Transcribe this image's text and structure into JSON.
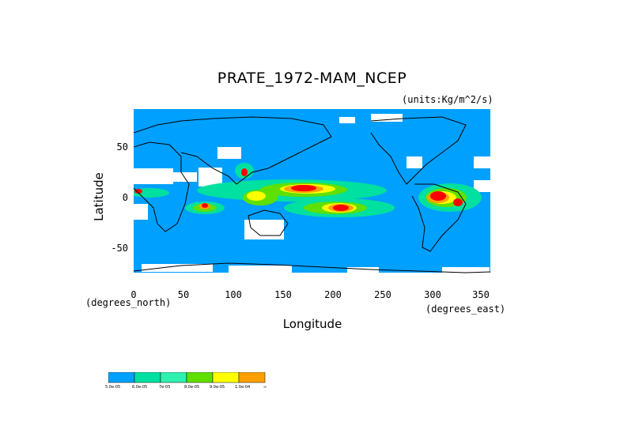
{
  "title": "PRATE_1972-MAM_NCEP",
  "units": "(units:Kg/m^2/s)",
  "x_axis": {
    "label": "Longitude",
    "sublabel_left": "(degrees_north)",
    "sublabel_right": "(degrees_east)",
    "ticks": [
      "0",
      "50",
      "100",
      "150",
      "200",
      "250",
      "300",
      "350"
    ],
    "range": [
      0,
      360
    ]
  },
  "y_axis": {
    "label": "Latitude",
    "ticks": [
      "50",
      "0",
      "-50"
    ],
    "range": [
      -90,
      90
    ]
  },
  "legend": {
    "colors": [
      "#00a0ff",
      "#00e0a0",
      "#30f0b0",
      "#60e000",
      "#ffff00",
      "#ffa000",
      "#ff0000"
    ],
    "labels": [
      "5.0e-05",
      "6.0e-05",
      "7e-05",
      "8.0e-05",
      "9.0e-05",
      "1.0e-04",
      "∞"
    ]
  },
  "colors": {
    "base": "#00a0ff",
    "missing": "#ffffff",
    "land_outline": "#000000"
  }
}
